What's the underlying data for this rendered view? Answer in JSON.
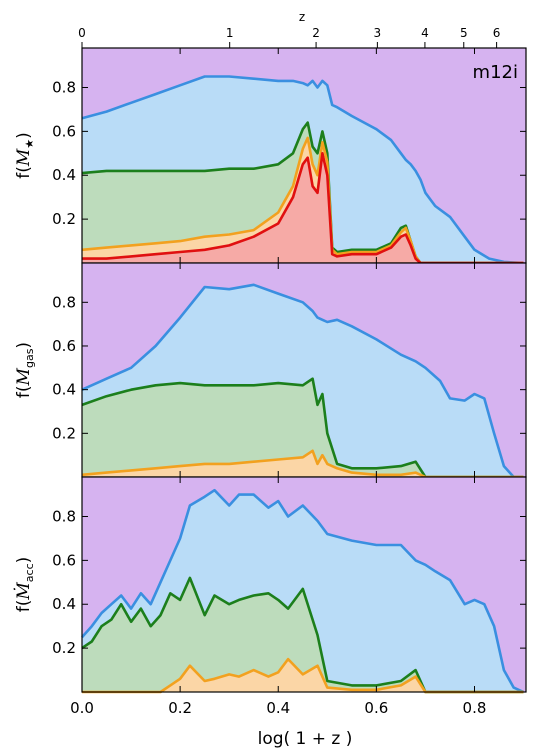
{
  "figure": {
    "colors": {
      "background": "#d6b3f0",
      "blue_fill": "#b9dcf7",
      "blue_line": "#3a8fe0",
      "green_fill": "#bddcbc",
      "green_line": "#1c7f1c",
      "orange_fill": "#fbd6a6",
      "orange_line": "#f2a11f",
      "red_fill": "#f6aaa6",
      "red_line": "#e01010"
    },
    "top_axis": {
      "label": "z",
      "ticks": [
        {
          "z": 0,
          "label": "0"
        },
        {
          "z": 1,
          "label": "1"
        },
        {
          "z": 2,
          "label": "2"
        },
        {
          "z": 3,
          "label": "3"
        },
        {
          "z": 4,
          "label": "4"
        },
        {
          "z": 5,
          "label": "5"
        },
        {
          "z": 6,
          "label": "6"
        }
      ]
    },
    "xlabel": "log( 1 + z )",
    "xlim": [
      0.0,
      0.905
    ],
    "xticks": [
      "0.0",
      "0.2",
      "0.4",
      "0.6",
      "0.8"
    ]
  },
  "chart_data": [
    {
      "type": "area",
      "panel": "stellar mass",
      "ylabel_text": "f(",
      "ylabel_symbol": "M",
      "ylabel_subscript": "★",
      "ylabel_close": ")",
      "annotation": "m12i",
      "ylim": [
        0,
        0.98
      ],
      "yticks": [
        "0.2",
        "0.4",
        "0.6",
        "0.8"
      ],
      "x": [
        0.0,
        0.05,
        0.1,
        0.15,
        0.2,
        0.25,
        0.3,
        0.35,
        0.4,
        0.43,
        0.45,
        0.46,
        0.47,
        0.48,
        0.49,
        0.5,
        0.51,
        0.52,
        0.55,
        0.6,
        0.63,
        0.65,
        0.66,
        0.67,
        0.68,
        0.69,
        0.7,
        0.72,
        0.75,
        0.78,
        0.8,
        0.83,
        0.86,
        0.9
      ],
      "series": [
        {
          "color": "blue",
          "values": [
            0.66,
            0.69,
            0.73,
            0.77,
            0.81,
            0.85,
            0.85,
            0.84,
            0.83,
            0.83,
            0.82,
            0.81,
            0.83,
            0.8,
            0.83,
            0.81,
            0.72,
            0.71,
            0.67,
            0.61,
            0.56,
            0.5,
            0.47,
            0.45,
            0.42,
            0.38,
            0.32,
            0.26,
            0.21,
            0.12,
            0.06,
            0.02,
            0.005,
            0.0
          ]
        },
        {
          "color": "green",
          "values": [
            0.41,
            0.42,
            0.42,
            0.42,
            0.42,
            0.42,
            0.43,
            0.43,
            0.45,
            0.5,
            0.61,
            0.64,
            0.53,
            0.5,
            0.6,
            0.5,
            0.07,
            0.05,
            0.06,
            0.06,
            0.09,
            0.16,
            0.17,
            0.1,
            0.03,
            0.0,
            0.0,
            0.0,
            0.0,
            0.0,
            0.0,
            0.0,
            0.0,
            0.0
          ]
        },
        {
          "color": "orange",
          "values": [
            0.06,
            0.07,
            0.08,
            0.09,
            0.1,
            0.12,
            0.13,
            0.15,
            0.23,
            0.35,
            0.52,
            0.57,
            0.45,
            0.4,
            0.55,
            0.46,
            0.06,
            0.04,
            0.05,
            0.05,
            0.08,
            0.14,
            0.16,
            0.1,
            0.03,
            0.0,
            0.0,
            0.0,
            0.0,
            0.0,
            0.0,
            0.0,
            0.0,
            0.0
          ]
        },
        {
          "color": "red",
          "values": [
            0.02,
            0.02,
            0.03,
            0.04,
            0.05,
            0.06,
            0.08,
            0.12,
            0.18,
            0.3,
            0.45,
            0.48,
            0.35,
            0.32,
            0.5,
            0.4,
            0.04,
            0.03,
            0.04,
            0.04,
            0.07,
            0.12,
            0.13,
            0.08,
            0.02,
            0.0,
            0.0,
            0.0,
            0.0,
            0.0,
            0.0,
            0.0,
            0.0,
            0.0
          ]
        }
      ]
    },
    {
      "type": "area",
      "panel": "gas mass",
      "ylabel_text": "f(",
      "ylabel_symbol": "M",
      "ylabel_subscript": "gas",
      "ylabel_close": ")",
      "annotation": "",
      "ylim": [
        0,
        0.98
      ],
      "yticks": [
        "0.2",
        "0.4",
        "0.6",
        "0.8"
      ],
      "x": [
        0.0,
        0.05,
        0.1,
        0.15,
        0.2,
        0.25,
        0.3,
        0.35,
        0.4,
        0.45,
        0.47,
        0.48,
        0.49,
        0.5,
        0.52,
        0.55,
        0.6,
        0.65,
        0.68,
        0.7,
        0.73,
        0.75,
        0.78,
        0.8,
        0.82,
        0.84,
        0.86,
        0.88,
        0.9
      ],
      "series": [
        {
          "color": "blue",
          "values": [
            0.4,
            0.45,
            0.5,
            0.6,
            0.73,
            0.87,
            0.86,
            0.88,
            0.84,
            0.8,
            0.76,
            0.73,
            0.72,
            0.71,
            0.72,
            0.69,
            0.63,
            0.56,
            0.53,
            0.5,
            0.44,
            0.36,
            0.35,
            0.38,
            0.36,
            0.2,
            0.05,
            0.0,
            0.0
          ]
        },
        {
          "color": "green",
          "values": [
            0.33,
            0.37,
            0.4,
            0.42,
            0.43,
            0.42,
            0.42,
            0.42,
            0.43,
            0.42,
            0.45,
            0.33,
            0.38,
            0.2,
            0.06,
            0.04,
            0.04,
            0.05,
            0.07,
            0.0,
            0.0,
            0.0,
            0.0,
            0.0,
            0.0,
            0.0,
            0.0,
            0.0,
            0.0
          ]
        },
        {
          "color": "orange",
          "values": [
            0.01,
            0.02,
            0.03,
            0.04,
            0.05,
            0.06,
            0.06,
            0.07,
            0.08,
            0.09,
            0.12,
            0.06,
            0.1,
            0.06,
            0.04,
            0.02,
            0.01,
            0.01,
            0.02,
            0.0,
            0.0,
            0.0,
            0.0,
            0.0,
            0.0,
            0.0,
            0.0,
            0.0,
            0.0
          ]
        }
      ]
    },
    {
      "type": "area",
      "panel": "accretion rate",
      "ylabel_text": "f(",
      "ylabel_symbol": "Ṁ",
      "ylabel_subscript": "acc",
      "ylabel_close": ")",
      "annotation": "",
      "ylim": [
        0,
        0.98
      ],
      "yticks": [
        "0.2",
        "0.4",
        "0.6",
        "0.8"
      ],
      "x": [
        0.0,
        0.02,
        0.04,
        0.06,
        0.08,
        0.1,
        0.12,
        0.14,
        0.16,
        0.18,
        0.2,
        0.22,
        0.25,
        0.27,
        0.3,
        0.32,
        0.35,
        0.38,
        0.4,
        0.42,
        0.45,
        0.48,
        0.5,
        0.55,
        0.6,
        0.65,
        0.68,
        0.7,
        0.72,
        0.75,
        0.78,
        0.8,
        0.82,
        0.84,
        0.86,
        0.88,
        0.9
      ],
      "series": [
        {
          "color": "blue",
          "values": [
            0.25,
            0.3,
            0.36,
            0.4,
            0.44,
            0.38,
            0.45,
            0.4,
            0.5,
            0.6,
            0.7,
            0.85,
            0.89,
            0.92,
            0.85,
            0.9,
            0.9,
            0.84,
            0.87,
            0.8,
            0.85,
            0.78,
            0.72,
            0.69,
            0.67,
            0.67,
            0.6,
            0.58,
            0.55,
            0.51,
            0.4,
            0.42,
            0.4,
            0.3,
            0.1,
            0.02,
            0.0
          ]
        },
        {
          "color": "green",
          "values": [
            0.2,
            0.23,
            0.3,
            0.33,
            0.4,
            0.32,
            0.38,
            0.3,
            0.35,
            0.45,
            0.42,
            0.52,
            0.35,
            0.44,
            0.4,
            0.42,
            0.44,
            0.45,
            0.42,
            0.38,
            0.47,
            0.26,
            0.05,
            0.03,
            0.03,
            0.05,
            0.1,
            0.0,
            0.0,
            0.0,
            0.0,
            0.0,
            0.0,
            0.0,
            0.0,
            0.0,
            0.0
          ]
        },
        {
          "color": "orange",
          "values": [
            0.0,
            0.0,
            0.0,
            0.0,
            0.0,
            0.0,
            0.0,
            0.0,
            0.0,
            0.03,
            0.06,
            0.12,
            0.05,
            0.06,
            0.08,
            0.07,
            0.1,
            0.07,
            0.09,
            0.15,
            0.08,
            0.12,
            0.02,
            0.01,
            0.01,
            0.03,
            0.07,
            0.0,
            0.0,
            0.0,
            0.0,
            0.0,
            0.0,
            0.0,
            0.0,
            0.0,
            0.0
          ]
        }
      ]
    }
  ]
}
